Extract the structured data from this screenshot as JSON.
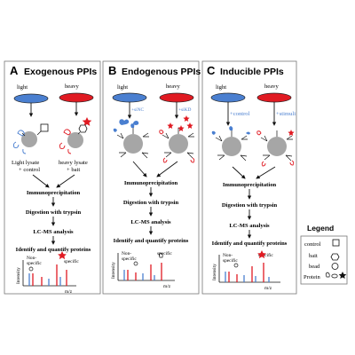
{
  "panels": [
    {
      "letter": "A",
      "title": "Exogenous PPIs",
      "left_label": "light",
      "right_label": "heavy",
      "left_caption": [
        "Light lysate",
        "+ control"
      ],
      "right_caption": [
        "heavy lysate",
        "+ bait"
      ],
      "steps": [
        "Immunoprecipitation",
        "Digestion with trypsin",
        "LC-MS analysis",
        "Identify and quantify proteins"
      ],
      "spectrum": {
        "y_label": "Intensity",
        "x_label": "m/z",
        "nonspecific_label": [
          "Non-",
          "specific"
        ],
        "specific_label": "specific"
      }
    },
    {
      "letter": "B",
      "title": "Endogenous PPIs",
      "left_label": "light",
      "right_label": "heavy",
      "left_treatment": "+siNC",
      "right_treatment": "+siKD",
      "steps": [
        "Immunoprecipitation",
        "Digestion with trypsin",
        "LC-MS analysis",
        "Identify and quantify proteins"
      ],
      "spectrum": {
        "y_label": "Intensity",
        "x_label": "m/z",
        "nonspecific_label": [
          "Non-",
          "specific"
        ],
        "specific_label": "specific"
      }
    },
    {
      "letter": "C",
      "title": "Inducible PPIs",
      "left_label": "light",
      "right_label": "heavy",
      "left_treatment": "+control",
      "right_treatment": "+stimuli",
      "steps": [
        "Immunoprecipitation",
        "Digestion with trypsin",
        "LC-MS analysis",
        "Identify and quantify proteins"
      ],
      "spectrum": {
        "y_label": "Intensity",
        "x_label": "m/z",
        "nonspecific_label": [
          "Non-",
          "specific"
        ],
        "specific_label": "specific"
      }
    }
  ],
  "legend": {
    "title": "Legend",
    "items": [
      {
        "label": "control",
        "symbol": "square"
      },
      {
        "label": "bait",
        "symbol": "hexagon"
      },
      {
        "label": "bead",
        "symbol": "circle"
      },
      {
        "label": "Protein",
        "symbol": "proteins"
      }
    ]
  },
  "colors": {
    "light": "#4a7fd0",
    "heavy": "#e01a22",
    "bead": "#a6a6a6",
    "ink": "#111111"
  }
}
